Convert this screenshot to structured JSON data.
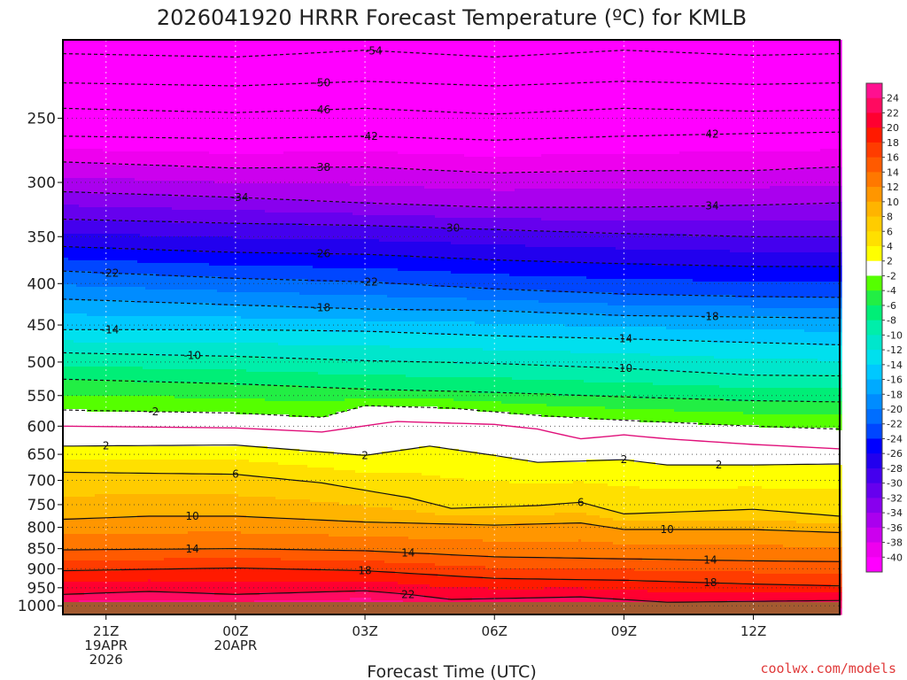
{
  "chart_data": {
    "type": "heatmap",
    "title": "2026041920 HRRR Forecast Temperature (ºC) for KMLB",
    "xlabel": "Forecast Time (UTC)",
    "ylabel": "",
    "x_range_hours": [
      0,
      18
    ],
    "x_ticks": [
      {
        "hour": 1,
        "lines": [
          "21Z",
          "19APR",
          "2026"
        ]
      },
      {
        "hour": 4,
        "lines": [
          "00Z",
          "20APR"
        ]
      },
      {
        "hour": 7,
        "lines": [
          "03Z"
        ]
      },
      {
        "hour": 10,
        "lines": [
          "06Z"
        ]
      },
      {
        "hour": 13,
        "lines": [
          "09Z"
        ]
      },
      {
        "hour": 16,
        "lines": [
          "12Z"
        ]
      }
    ],
    "y_axis": {
      "scale": "log-pressure",
      "range_hpa": [
        1025,
        200
      ],
      "ticks": [
        250,
        300,
        350,
        400,
        450,
        500,
        550,
        600,
        650,
        700,
        750,
        800,
        850,
        900,
        950,
        1000
      ]
    },
    "colorbar": {
      "labels": [
        24,
        22,
        20,
        18,
        16,
        14,
        12,
        10,
        8,
        6,
        4,
        2,
        -2,
        -4,
        -6,
        -8,
        -10,
        -12,
        -14,
        -16,
        -18,
        -20,
        -22,
        -24,
        -26,
        -28,
        -30,
        -32,
        -34,
        -36,
        -38,
        -40
      ],
      "colors": [
        "#ff1090",
        "#ff0a60",
        "#ff0030",
        "#ff1a00",
        "#ff3c00",
        "#ff5a00",
        "#ff7800",
        "#ff9600",
        "#ffb400",
        "#ffcc00",
        "#ffe000",
        "#ffff00",
        "#ffffff",
        "#55ff00",
        "#22ee44",
        "#00ee77",
        "#00eeaa",
        "#00e6cc",
        "#00e0ee",
        "#00c8ff",
        "#00aaff",
        "#008cff",
        "#006eff",
        "#0046ff",
        "#0000ff",
        "#2200ee",
        "#4400ee",
        "#6600ee",
        "#8800ee",
        "#aa00ee",
        "#cc00ee",
        "#ee00ee",
        "#ff00ff"
      ]
    },
    "isotherms": [
      {
        "temp": -54,
        "label": "-54",
        "points": [
          [
            0,
            208
          ],
          [
            4,
            210
          ],
          [
            7,
            206
          ],
          [
            10,
            210
          ],
          [
            13,
            206
          ],
          [
            16,
            209
          ],
          [
            18,
            208
          ]
        ],
        "label_at": 7.2
      },
      {
        "temp": -50,
        "label": "-50",
        "points": [
          [
            0,
            226
          ],
          [
            4,
            228
          ],
          [
            7,
            225
          ],
          [
            10,
            228
          ],
          [
            13,
            225
          ],
          [
            16,
            227
          ],
          [
            18,
            226
          ]
        ],
        "label_at": 6
      },
      {
        "temp": -46,
        "label": "-46",
        "points": [
          [
            0,
            243
          ],
          [
            4,
            246
          ],
          [
            7,
            243
          ],
          [
            10,
            247
          ],
          [
            13,
            243
          ],
          [
            16,
            245
          ],
          [
            18,
            244
          ]
        ],
        "label_at": 6
      },
      {
        "temp": -42,
        "label": "-42",
        "points": [
          [
            0,
            263
          ],
          [
            4,
            265
          ],
          [
            7,
            263
          ],
          [
            10,
            266
          ],
          [
            13,
            263
          ],
          [
            16,
            261
          ],
          [
            18,
            260
          ]
        ],
        "label_at": 7.1,
        "label_at2": 15
      },
      {
        "temp": -38,
        "label": "-38",
        "points": [
          [
            0,
            283
          ],
          [
            4,
            288
          ],
          [
            7,
            287
          ],
          [
            10,
            292
          ],
          [
            13,
            290
          ],
          [
            16,
            290
          ],
          [
            18,
            287
          ]
        ],
        "label_at": 6
      },
      {
        "temp": -34,
        "label": "-34",
        "points": [
          [
            0,
            308
          ],
          [
            4,
            313
          ],
          [
            7,
            318
          ],
          [
            10,
            322
          ],
          [
            13,
            322
          ],
          [
            16,
            320
          ],
          [
            18,
            318
          ]
        ],
        "label_at": 4.1,
        "label_at2": 15
      },
      {
        "temp": -30,
        "label": "-30",
        "points": [
          [
            0,
            333
          ],
          [
            4,
            337
          ],
          [
            7,
            339
          ],
          [
            10,
            343
          ],
          [
            13,
            347
          ],
          [
            16,
            350
          ],
          [
            18,
            350
          ]
        ],
        "label_at": 9
      },
      {
        "temp": -26,
        "label": "-26",
        "points": [
          [
            0,
            360
          ],
          [
            4,
            366
          ],
          [
            7,
            368
          ],
          [
            10,
            374
          ],
          [
            13,
            378
          ],
          [
            16,
            381
          ],
          [
            18,
            381
          ]
        ],
        "label_at": 6
      },
      {
        "temp": -22,
        "label": "-22",
        "points": [
          [
            0,
            386
          ],
          [
            4,
            394
          ],
          [
            7,
            398
          ],
          [
            10,
            406
          ],
          [
            13,
            412
          ],
          [
            16,
            415
          ],
          [
            18,
            416
          ]
        ],
        "label_at": 1.1,
        "label_at2": 7.1
      },
      {
        "temp": -18,
        "label": "-18",
        "points": [
          [
            0,
            418
          ],
          [
            4,
            425
          ],
          [
            7,
            430
          ],
          [
            10,
            432
          ],
          [
            13,
            438
          ],
          [
            16,
            440
          ],
          [
            18,
            441
          ]
        ],
        "label_at": 6,
        "label_at2": 15
      },
      {
        "temp": -14,
        "label": "-14",
        "points": [
          [
            0,
            456
          ],
          [
            4,
            456
          ],
          [
            7,
            458
          ],
          [
            10,
            464
          ],
          [
            13,
            468
          ],
          [
            16,
            473
          ],
          [
            18,
            476
          ]
        ],
        "label_at": 1.1,
        "label_at2": 13
      },
      {
        "temp": -10,
        "label": "-10",
        "points": [
          [
            0,
            487
          ],
          [
            4,
            492
          ],
          [
            7,
            498
          ],
          [
            10,
            502
          ],
          [
            13,
            509
          ],
          [
            16,
            519
          ],
          [
            18,
            520
          ]
        ],
        "label_at": 3,
        "label_at2": 13
      },
      {
        "temp": -6,
        "label": "",
        "points": [
          [
            0,
            525
          ],
          [
            4,
            532
          ],
          [
            7,
            540
          ],
          [
            10,
            545
          ],
          [
            13,
            552
          ],
          [
            16,
            558
          ],
          [
            18,
            560
          ]
        ]
      },
      {
        "temp": -2,
        "label": "-2",
        "points": [
          [
            0,
            573
          ],
          [
            4,
            578
          ],
          [
            6,
            585
          ],
          [
            7,
            566
          ],
          [
            9,
            570
          ],
          [
            11,
            582
          ],
          [
            13,
            590
          ],
          [
            16,
            600
          ],
          [
            18,
            605
          ]
        ],
        "label_at": 2.1
      },
      {
        "temp": 0,
        "label": "",
        "freezing": true,
        "points": [
          [
            0,
            600
          ],
          [
            4,
            603
          ],
          [
            6,
            610
          ],
          [
            7.7,
            592
          ],
          [
            10,
            597
          ],
          [
            11,
            605
          ],
          [
            12,
            622
          ],
          [
            13,
            615
          ],
          [
            14,
            622
          ],
          [
            16,
            632
          ],
          [
            18,
            640
          ]
        ]
      },
      {
        "temp": 2,
        "label": "2",
        "points": [
          [
            0,
            635
          ],
          [
            4,
            633
          ],
          [
            7,
            652
          ],
          [
            8.5,
            635
          ],
          [
            10,
            652
          ],
          [
            11,
            665
          ],
          [
            13,
            660
          ],
          [
            14,
            670
          ],
          [
            16,
            670
          ],
          [
            18,
            668
          ]
        ],
        "label_at": 1,
        "label_at2": 7,
        "label_at3": 13,
        "label_at4": 15.2
      },
      {
        "temp": 6,
        "label": "6",
        "points": [
          [
            0,
            684
          ],
          [
            4,
            688
          ],
          [
            6,
            705
          ],
          [
            8,
            735
          ],
          [
            9,
            758
          ],
          [
            11,
            752
          ],
          [
            12,
            745
          ],
          [
            13,
            770
          ],
          [
            16,
            760
          ],
          [
            18,
            775
          ]
        ],
        "label_at": 4,
        "label_at2": 12
      },
      {
        "temp": 10,
        "label": "10",
        "points": [
          [
            0,
            782
          ],
          [
            2,
            775
          ],
          [
            4,
            775
          ],
          [
            7,
            788
          ],
          [
            10,
            795
          ],
          [
            12,
            790
          ],
          [
            13,
            805
          ],
          [
            16,
            805
          ],
          [
            18,
            812
          ]
        ],
        "label_at": 3,
        "label_at2": 14
      },
      {
        "temp": 14,
        "label": "14",
        "points": [
          [
            0,
            853
          ],
          [
            4,
            850
          ],
          [
            7,
            855
          ],
          [
            10,
            870
          ],
          [
            13,
            875
          ],
          [
            16,
            880
          ],
          [
            18,
            882
          ]
        ],
        "label_at": 3,
        "label_at2": 8,
        "label_at3": 15
      },
      {
        "temp": 18,
        "label": "18",
        "points": [
          [
            0,
            905
          ],
          [
            4,
            898
          ],
          [
            7,
            905
          ],
          [
            10,
            925
          ],
          [
            13,
            930
          ],
          [
            16,
            940
          ],
          [
            18,
            945
          ]
        ],
        "label_at": 7,
        "label_at2": 15
      },
      {
        "temp": 22,
        "label": "22",
        "points": [
          [
            0,
            968
          ],
          [
            2,
            960
          ],
          [
            4,
            968
          ],
          [
            7,
            958
          ],
          [
            8,
            968
          ],
          [
            9,
            982
          ],
          [
            12,
            975
          ],
          [
            14,
            990
          ],
          [
            18,
            985
          ]
        ],
        "label_at": 8
      }
    ]
  },
  "credit": "coolwx.com/models"
}
